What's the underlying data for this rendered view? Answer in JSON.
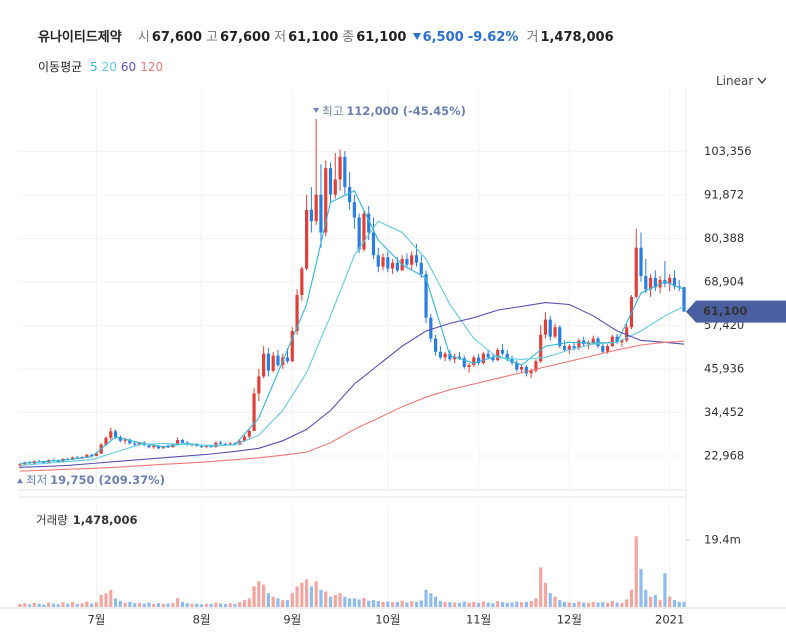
{
  "header": {
    "name": "유나이티드제약",
    "items": [
      {
        "label": "시",
        "value": "67,600"
      },
      {
        "label": "고",
        "value": "67,600"
      },
      {
        "label": "저",
        "value": "61,100"
      },
      {
        "label": "종",
        "value": "61,100"
      }
    ],
    "change": "6,500",
    "change_pct": "-9.62%",
    "volume_label": "거",
    "volume": "1,478,006"
  },
  "chart_data": {
    "type": "candlestick",
    "scale_label": "Linear",
    "ma_title": "이동평균",
    "volume_title": "거래량",
    "up_color": "#e0403a",
    "down_color": "#2a7de1",
    "volume_up_color": "#f3a6a0",
    "volume_down_color": "#8fbcef",
    "ylim": [
      14000,
      117000
    ],
    "yticks": [
      {
        "value": 22968,
        "label": "22,968"
      },
      {
        "value": 34452,
        "label": "34,452"
      },
      {
        "value": 45936,
        "label": "45,936"
      },
      {
        "value": 57420,
        "label": "57,420"
      },
      {
        "value": 68904,
        "label": "68,904"
      },
      {
        "value": 80388,
        "label": "80,388"
      },
      {
        "value": 91872,
        "label": "91,872"
      },
      {
        "value": 103356,
        "label": "103,356"
      }
    ],
    "vlim": [
      0,
      29600000
    ],
    "vticks": [
      {
        "value": 19400000,
        "label": "19.4m"
      }
    ],
    "grid": true,
    "categories": [
      null,
      null,
      null,
      null,
      null,
      null,
      null,
      null,
      null,
      null,
      null,
      null,
      null,
      null,
      null,
      null,
      "7월",
      null,
      null,
      null,
      null,
      null,
      null,
      null,
      null,
      null,
      null,
      null,
      null,
      null,
      null,
      null,
      null,
      null,
      null,
      null,
      null,
      null,
      "8월",
      null,
      null,
      null,
      null,
      null,
      null,
      null,
      null,
      null,
      null,
      null,
      null,
      null,
      null,
      null,
      null,
      null,
      null,
      "9월",
      null,
      null,
      null,
      null,
      null,
      null,
      null,
      null,
      null,
      null,
      null,
      null,
      null,
      null,
      null,
      null,
      null,
      null,
      null,
      "10월",
      null,
      null,
      null,
      null,
      null,
      null,
      null,
      null,
      null,
      null,
      null,
      null,
      null,
      null,
      null,
      null,
      null,
      null,
      "11월",
      null,
      null,
      null,
      null,
      null,
      null,
      null,
      null,
      null,
      null,
      null,
      null,
      null,
      null,
      null,
      null,
      null,
      null,
      "12월",
      null,
      null,
      null,
      null,
      null,
      null,
      null,
      null,
      null,
      null,
      null,
      null,
      null,
      null,
      null,
      null,
      null,
      null,
      null,
      null,
      "2021",
      null,
      null,
      null
    ],
    "ohlc": [
      [
        20500,
        21000,
        19750,
        20800
      ],
      [
        20800,
        21500,
        20600,
        21300
      ],
      [
        21300,
        21600,
        20900,
        21000
      ],
      [
        21000,
        21800,
        20900,
        21600
      ],
      [
        21600,
        22000,
        21200,
        21400
      ],
      [
        21400,
        21700,
        21000,
        21200
      ],
      [
        21200,
        22100,
        21100,
        21900
      ],
      [
        21900,
        22300,
        21500,
        21700
      ],
      [
        21700,
        22000,
        21300,
        21500
      ],
      [
        21500,
        22400,
        21400,
        22200
      ],
      [
        22200,
        22500,
        21800,
        22000
      ],
      [
        22000,
        22800,
        21900,
        22600
      ],
      [
        22600,
        23000,
        22200,
        22400
      ],
      [
        22400,
        22900,
        22100,
        22700
      ],
      [
        22700,
        23500,
        22600,
        23300
      ],
      [
        23300,
        23600,
        22800,
        23000
      ],
      [
        23000,
        23800,
        22900,
        23600
      ],
      [
        23600,
        26500,
        23500,
        26000
      ],
      [
        26000,
        28200,
        25600,
        27800
      ],
      [
        27800,
        30500,
        27200,
        29500
      ],
      [
        29500,
        30000,
        27500,
        28000
      ],
      [
        28000,
        28500,
        26600,
        27000
      ],
      [
        27000,
        27800,
        26200,
        27300
      ],
      [
        27300,
        27600,
        26000,
        26300
      ],
      [
        26300,
        26800,
        25500,
        26000
      ],
      [
        26000,
        26700,
        25700,
        26500
      ],
      [
        26500,
        26900,
        25600,
        25800
      ],
      [
        25800,
        26200,
        25000,
        25300
      ],
      [
        25300,
        25900,
        24900,
        25600
      ],
      [
        25600,
        25800,
        24800,
        25000
      ],
      [
        25000,
        25700,
        24900,
        25500
      ],
      [
        25500,
        26000,
        25100,
        25300
      ],
      [
        25300,
        26200,
        25200,
        26000
      ],
      [
        26000,
        27900,
        25800,
        27200
      ],
      [
        27200,
        27500,
        26200,
        26500
      ],
      [
        26500,
        26900,
        25700,
        25900
      ],
      [
        25900,
        26300,
        25500,
        26100
      ],
      [
        26100,
        26400,
        25400,
        25600
      ],
      [
        25600,
        26000,
        25100,
        25400
      ],
      [
        25400,
        25900,
        25000,
        25700
      ],
      [
        25700,
        26000,
        25200,
        25300
      ],
      [
        25300,
        26800,
        25200,
        26500
      ],
      [
        26500,
        27000,
        25900,
        26200
      ],
      [
        26200,
        26500,
        25600,
        25800
      ],
      [
        25800,
        26600,
        25700,
        26300
      ],
      [
        26300,
        26700,
        25800,
        26000
      ],
      [
        26000,
        27200,
        25900,
        26900
      ],
      [
        26900,
        28500,
        26700,
        28100
      ],
      [
        28100,
        30000,
        27500,
        29600
      ],
      [
        29600,
        41000,
        29500,
        39500
      ],
      [
        39500,
        46000,
        37500,
        44000
      ],
      [
        44000,
        52000,
        43500,
        50000
      ],
      [
        50000,
        51500,
        44000,
        45500
      ],
      [
        45500,
        50500,
        45000,
        49500
      ],
      [
        49500,
        51000,
        46500,
        47000
      ],
      [
        47000,
        50000,
        46000,
        49000
      ],
      [
        49000,
        51500,
        47500,
        48000
      ],
      [
        48000,
        57000,
        47800,
        56000
      ],
      [
        56000,
        67000,
        55000,
        65500
      ],
      [
        65500,
        73000,
        64000,
        72500
      ],
      [
        72500,
        92000,
        72000,
        88000
      ],
      [
        88000,
        94000,
        82000,
        85000
      ],
      [
        85000,
        112000,
        84000,
        92000
      ],
      [
        92000,
        100000,
        78000,
        82000
      ],
      [
        82000,
        101000,
        81000,
        99000
      ],
      [
        99000,
        100500,
        90000,
        92000
      ],
      [
        92000,
        103000,
        91000,
        96000
      ],
      [
        96000,
        104000,
        93000,
        102000
      ],
      [
        102000,
        103500,
        92000,
        94000
      ],
      [
        94000,
        98000,
        88000,
        90000
      ],
      [
        90000,
        92000,
        83000,
        86000
      ],
      [
        86000,
        87000,
        76500,
        77500
      ],
      [
        77500,
        88000,
        77000,
        87000
      ],
      [
        87000,
        89000,
        80000,
        82000
      ],
      [
        82000,
        86000,
        75000,
        76000
      ],
      [
        76000,
        78000,
        71500,
        73000
      ],
      [
        73000,
        76500,
        72000,
        75500
      ],
      [
        75500,
        77000,
        71500,
        72500
      ],
      [
        72500,
        75000,
        71000,
        74000
      ],
      [
        74000,
        75500,
        71500,
        72000
      ],
      [
        72000,
        76000,
        71800,
        75000
      ],
      [
        75000,
        76500,
        72500,
        73500
      ],
      [
        73500,
        77000,
        72000,
        76000
      ],
      [
        76000,
        79000,
        73000,
        74000
      ],
      [
        74000,
        76000,
        70000,
        71000
      ],
      [
        71000,
        72000,
        58000,
        59500
      ],
      [
        59500,
        60500,
        53000,
        54000
      ],
      [
        54000,
        55000,
        49500,
        50500
      ],
      [
        50500,
        52000,
        48500,
        49000
      ],
      [
        49000,
        50500,
        48000,
        50000
      ],
      [
        50000,
        51000,
        48000,
        48500
      ],
      [
        48500,
        50000,
        47500,
        49200
      ],
      [
        49200,
        50500,
        48300,
        48800
      ],
      [
        48800,
        49500,
        46000,
        46500
      ],
      [
        46500,
        47500,
        45000,
        47000
      ],
      [
        47000,
        49500,
        46500,
        49000
      ],
      [
        49000,
        50000,
        47000,
        47500
      ],
      [
        47500,
        50500,
        47200,
        50000
      ],
      [
        50000,
        51000,
        48500,
        49000
      ],
      [
        49000,
        50000,
        47800,
        48300
      ],
      [
        48300,
        51500,
        48000,
        51000
      ],
      [
        51000,
        52500,
        49500,
        50000
      ],
      [
        50000,
        51000,
        48000,
        48600
      ],
      [
        48600,
        49500,
        47000,
        47600
      ],
      [
        47600,
        48200,
        45200,
        45800
      ],
      [
        45800,
        47000,
        44800,
        46500
      ],
      [
        46500,
        47000,
        44000,
        44800
      ],
      [
        44800,
        46000,
        43500,
        45500
      ],
      [
        45500,
        48500,
        45000,
        48000
      ],
      [
        48000,
        57500,
        47500,
        55000
      ],
      [
        55000,
        61000,
        54000,
        59000
      ],
      [
        59000,
        60000,
        53500,
        54500
      ],
      [
        54500,
        58000,
        54000,
        57000
      ],
      [
        57000,
        57500,
        51500,
        52000
      ],
      [
        52000,
        53500,
        50500,
        51000
      ],
      [
        51000,
        52500,
        50000,
        52000
      ],
      [
        52000,
        53000,
        50800,
        51500
      ],
      [
        51500,
        54000,
        51000,
        53500
      ],
      [
        53500,
        54500,
        52000,
        52500
      ],
      [
        52500,
        53500,
        51200,
        52800
      ],
      [
        52800,
        54800,
        52500,
        54000
      ],
      [
        54000,
        54500,
        51500,
        52000
      ],
      [
        52000,
        53000,
        50000,
        50500
      ],
      [
        50500,
        52500,
        50000,
        52000
      ],
      [
        52000,
        55000,
        51800,
        54500
      ],
      [
        54500,
        55200,
        52500,
        53000
      ],
      [
        53000,
        53800,
        51800,
        53500
      ],
      [
        53500,
        58000,
        53000,
        57000
      ],
      [
        57000,
        65500,
        56500,
        65000
      ],
      [
        65000,
        83000,
        64500,
        78000
      ],
      [
        78000,
        82000,
        69000,
        70500
      ],
      [
        70500,
        75000,
        66000,
        67000
      ],
      [
        67000,
        71000,
        65000,
        70000
      ],
      [
        70000,
        72000,
        66500,
        67500
      ],
      [
        67500,
        70500,
        66000,
        69500
      ],
      [
        69500,
        74500,
        67500,
        68500
      ],
      [
        68500,
        71000,
        66500,
        70000
      ],
      [
        70000,
        72000,
        67000,
        67800
      ],
      [
        67800,
        69500,
        66500,
        67600
      ],
      [
        67600,
        67600,
        61100,
        61100
      ]
    ],
    "volume": [
      900000,
      1100000,
      800000,
      1200000,
      900000,
      700000,
      1300000,
      1000000,
      800000,
      1400000,
      1000000,
      1500000,
      900000,
      1100000,
      1600000,
      1000000,
      1400000,
      3500000,
      4000000,
      5000000,
      2500000,
      1800000,
      1300000,
      1500000,
      1100000,
      1200000,
      1000000,
      1300000,
      900000,
      1100000,
      900000,
      1000000,
      1200000,
      2600000,
      1500000,
      1100000,
      900000,
      1000000,
      800000,
      900000,
      900000,
      1300000,
      1000000,
      900000,
      1100000,
      900000,
      1400000,
      2000000,
      2500000,
      6000000,
      7500000,
      6500000,
      4000000,
      3000000,
      2500000,
      2000000,
      2000000,
      4000000,
      6000000,
      7000000,
      8000000,
      6000000,
      7500000,
      5000000,
      4500000,
      3000000,
      3500000,
      4000000,
      3000000,
      2500000,
      2500000,
      2200000,
      2600000,
      1800000,
      2000000,
      1700000,
      1500000,
      1600000,
      1400000,
      1500000,
      1800000,
      1300000,
      1700000,
      1500000,
      1900000,
      5000000,
      4000000,
      3000000,
      1800000,
      1500000,
      1400000,
      1300000,
      1200000,
      1600000,
      1300000,
      1500000,
      1200000,
      1600000,
      1300000,
      1100000,
      1700000,
      1400000,
      1200000,
      1300000,
      1600000,
      1400000,
      1500000,
      1700000,
      2500000,
      11500000,
      7000000,
      4000000,
      3000000,
      2000000,
      1500000,
      1300000,
      1200000,
      1600000,
      1300000,
      1200000,
      1500000,
      1300000,
      1400000,
      1200000,
      1800000,
      1300000,
      1200000,
      2200000,
      5000000,
      20500000,
      11000000,
      5000000,
      3000000,
      3500000,
      2000000,
      9800000,
      3000000,
      2000000,
      1500000,
      1478006
    ],
    "ma_x": [
      0,
      5,
      10,
      15,
      20,
      25,
      30,
      35,
      40,
      45,
      50,
      55,
      60,
      65,
      70,
      75,
      80,
      85,
      90,
      95,
      100,
      105,
      110,
      115,
      120,
      125,
      130,
      135,
      139
    ],
    "ma": [
      {
        "name": "5",
        "color": "#2fb8d8",
        "values": [
          21000,
          21500,
          22000,
          22800,
          28000,
          26500,
          25400,
          26300,
          25600,
          26000,
          33000,
          48000,
          63000,
          90000,
          93000,
          80000,
          73500,
          70000,
          49500,
          47500,
          49500,
          47000,
          52000,
          53000,
          52800,
          53000,
          66000,
          69000,
          67000
        ]
      },
      {
        "name": "20",
        "color": "#62cbe3",
        "values": [
          20500,
          21000,
          21500,
          22000,
          24000,
          26000,
          26300,
          26000,
          25800,
          25900,
          28500,
          35000,
          45000,
          60000,
          76000,
          85000,
          82000,
          75000,
          63000,
          54000,
          49000,
          48500,
          49000,
          51000,
          52500,
          53000,
          56000,
          60000,
          62500
        ]
      },
      {
        "name": "60",
        "color": "#5b4fb5",
        "values": [
          20000,
          20200,
          20500,
          21000,
          21500,
          22000,
          22500,
          23000,
          23500,
          24200,
          25000,
          27000,
          30000,
          35000,
          42000,
          47000,
          52000,
          56000,
          58000,
          59500,
          61500,
          62500,
          63500,
          63000,
          60000,
          56000,
          53500,
          53000,
          52500
        ]
      },
      {
        "name": "120",
        "color": "#ee7a7a",
        "values": [
          19000,
          19200,
          19500,
          19700,
          20000,
          20400,
          20800,
          21100,
          21500,
          22000,
          22500,
          23200,
          24000,
          26500,
          30000,
          33000,
          36000,
          38500,
          40500,
          42000,
          43500,
          45000,
          46500,
          48000,
          49500,
          51000,
          52300,
          53000,
          53300
        ]
      }
    ],
    "annotations": [
      {
        "label": "최고",
        "text": "112,000 (-45.45%)",
        "index": 62,
        "value": 112000
      },
      {
        "label": "최저",
        "text": "19,750 (209.37%)",
        "index": 0,
        "value": 19750
      }
    ]
  }
}
